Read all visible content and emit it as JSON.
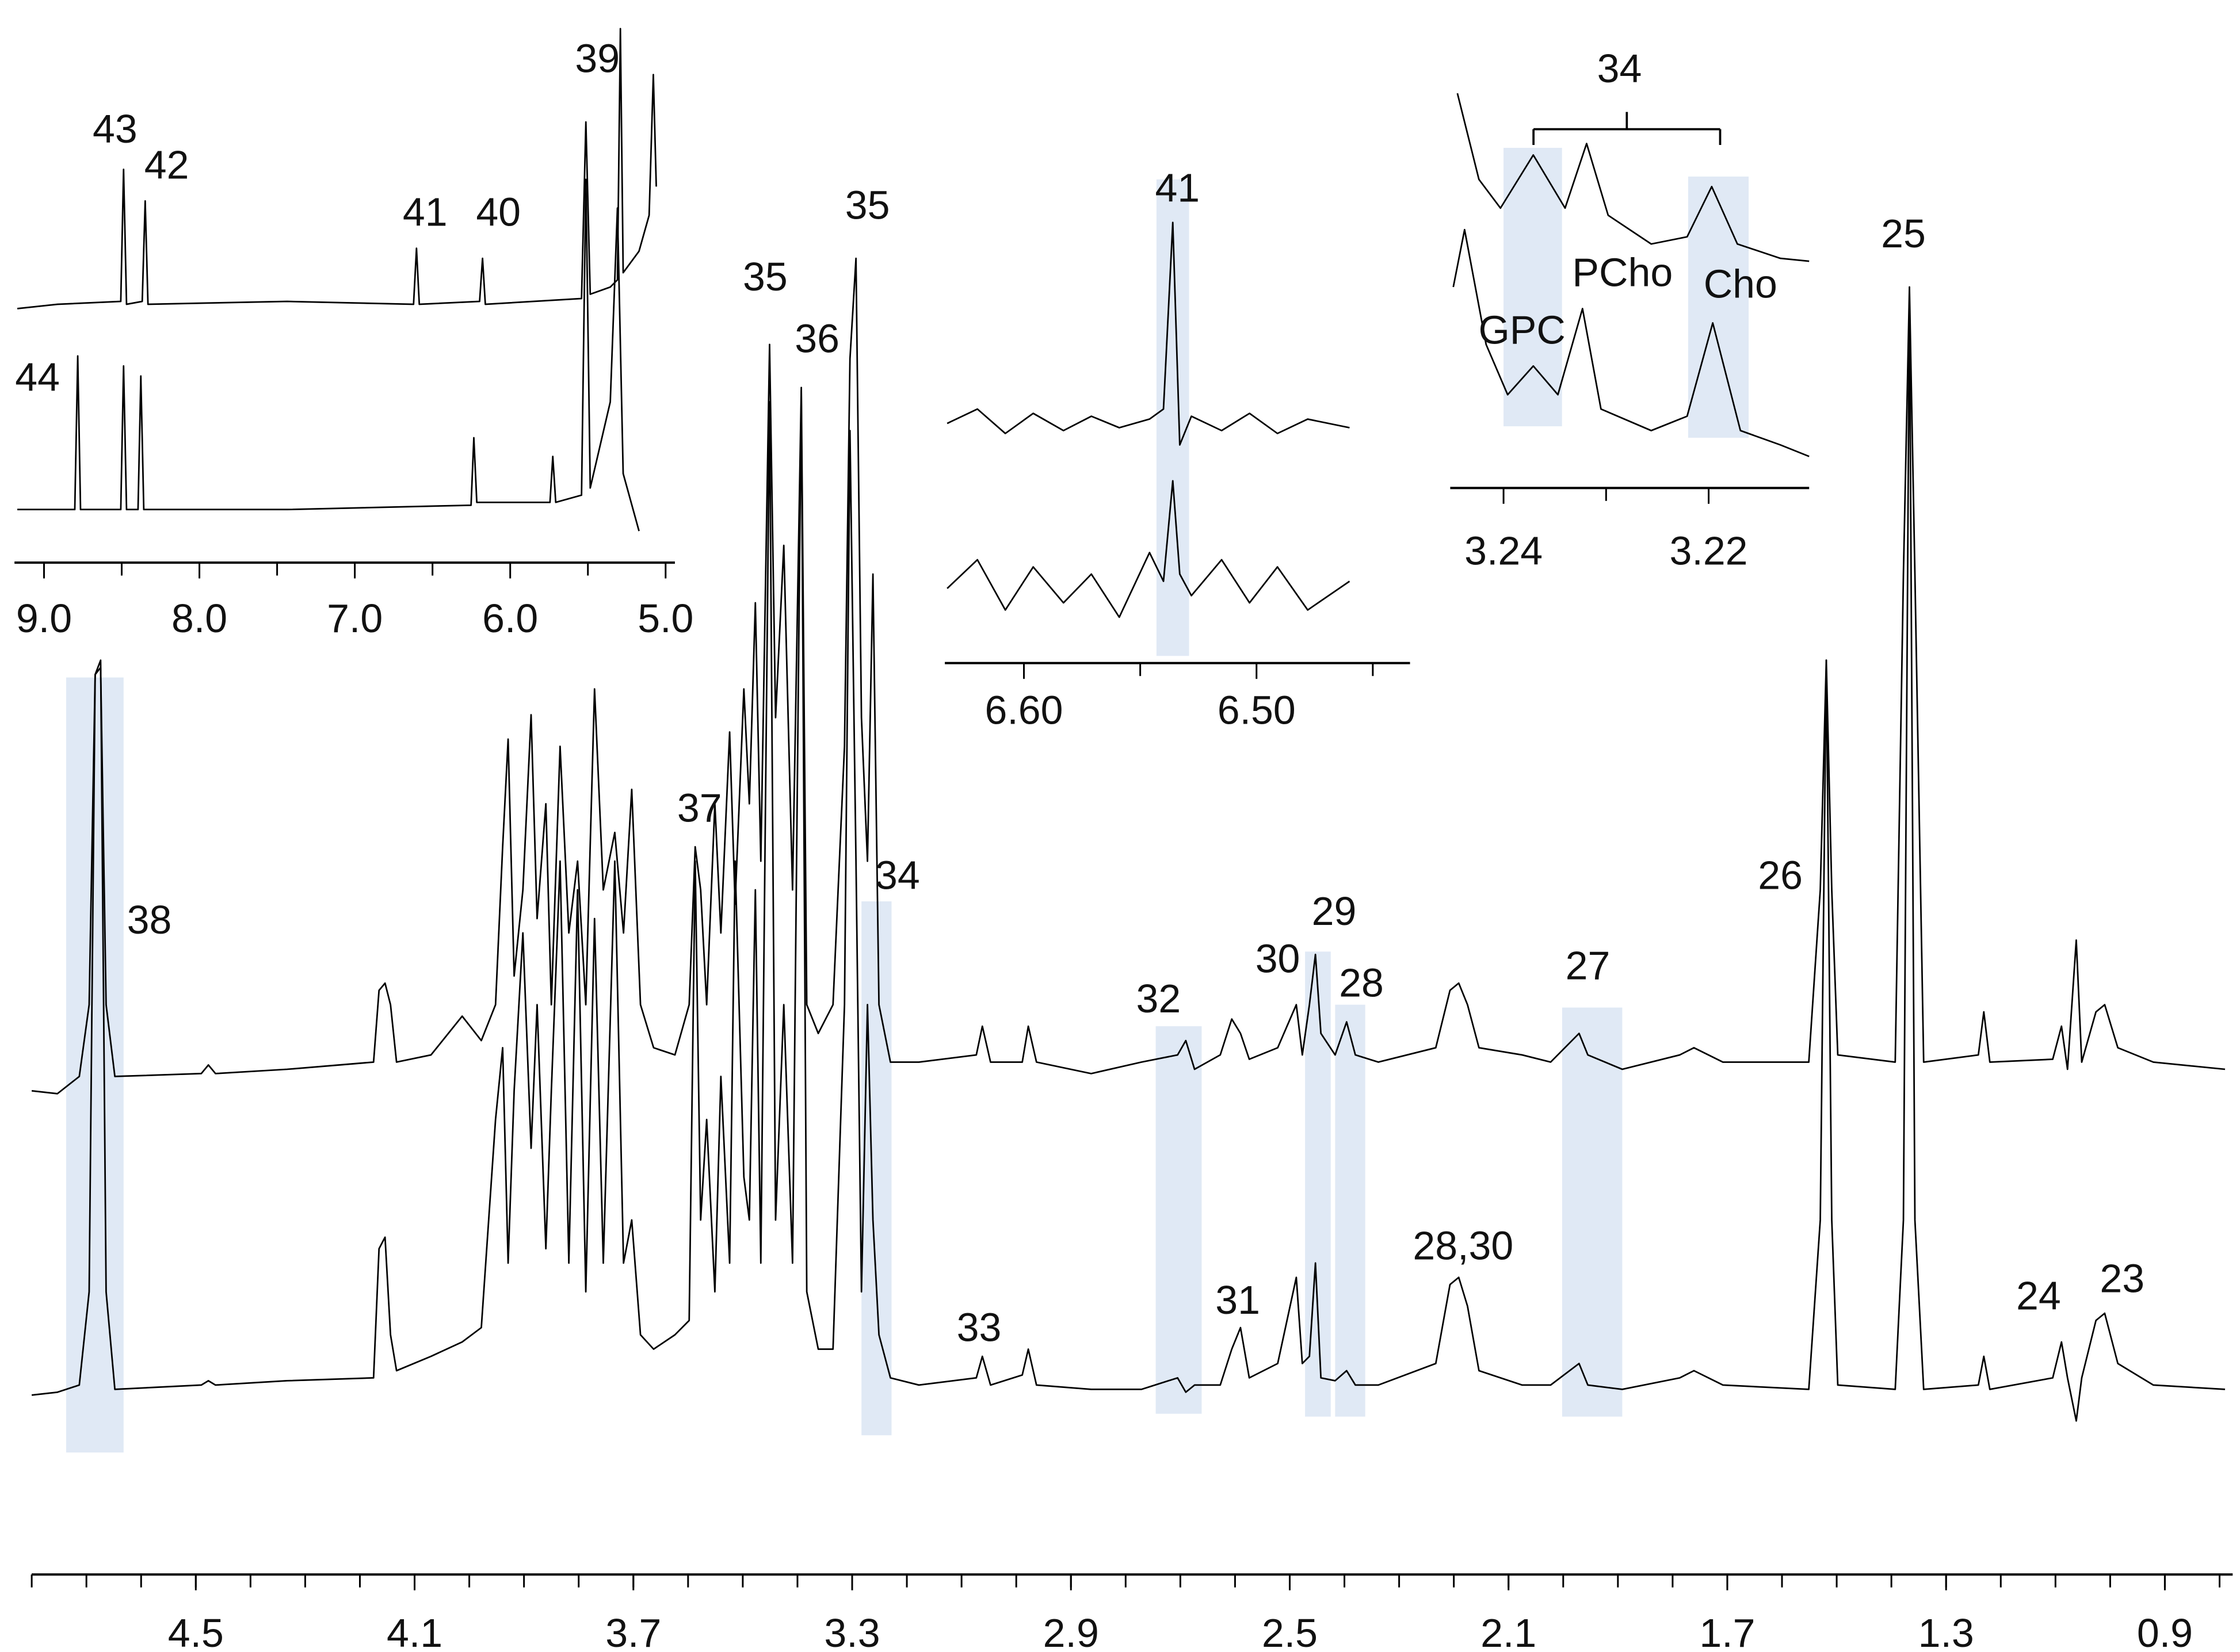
{
  "chart_data": [
    {
      "type": "line",
      "xlim": [
        4.8,
        0.776
      ],
      "ylim": [
        -20,
        820
      ],
      "xticks": [
        4.5,
        4.1,
        3.7,
        3.3,
        2.9,
        2.5,
        2.1,
        1.7,
        1.3,
        0.9
      ],
      "minor_xticks": [
        4.8,
        4.7,
        4.6,
        4.5,
        4.4,
        4.3,
        4.2,
        4.1,
        4.0,
        3.9,
        3.8,
        3.7,
        3.6,
        3.5,
        3.4,
        3.3,
        3.2,
        3.1,
        3.0,
        2.9,
        2.8,
        2.7,
        2.6,
        2.5,
        2.4,
        2.3,
        2.2,
        2.1,
        2.0,
        1.9,
        1.8,
        1.7,
        1.6,
        1.5,
        1.4,
        1.3,
        1.2,
        1.1,
        1.0,
        0.9,
        0.8
      ],
      "highlight_color": "#dbe5f3",
      "highlights": [
        {
          "x": [
            4.737,
            4.632
          ],
          "y": [
            -12,
            528
          ]
        },
        {
          "x": [
            3.283,
            3.228
          ],
          "y": [
            0,
            372
          ]
        },
        {
          "x": [
            2.745,
            2.661
          ],
          "y": [
            15,
            285
          ]
        },
        {
          "x": [
            2.472,
            2.425
          ],
          "y": [
            13,
            337
          ]
        },
        {
          "x": [
            2.417,
            2.362
          ],
          "y": [
            13,
            300
          ]
        },
        {
          "x": [
            2.002,
            1.892
          ],
          "y": [
            13,
            298
          ]
        }
      ],
      "x": [
        4.8,
        4.753,
        4.713,
        4.695,
        4.684,
        4.674,
        4.664,
        4.648,
        4.49,
        4.477,
        4.464,
        4.333,
        4.175,
        4.165,
        4.154,
        4.144,
        4.133,
        4.07,
        4.013,
        3.978,
        3.952,
        3.939,
        3.929,
        3.918,
        3.902,
        3.887,
        3.876,
        3.86,
        3.85,
        3.834,
        3.818,
        3.802,
        3.787,
        3.771,
        3.755,
        3.734,
        3.718,
        3.703,
        3.687,
        3.663,
        3.624,
        3.598,
        3.587,
        3.577,
        3.566,
        3.551,
        3.54,
        3.524,
        3.514,
        3.498,
        3.488,
        3.477,
        3.467,
        3.451,
        3.44,
        3.425,
        3.409,
        3.393,
        3.383,
        3.362,
        3.335,
        3.314,
        3.304,
        3.293,
        3.283,
        3.272,
        3.262,
        3.251,
        3.23,
        3.178,
        3.073,
        3.062,
        3.047,
        2.989,
        2.978,
        2.963,
        2.863,
        2.771,
        2.705,
        2.69,
        2.674,
        2.627,
        2.606,
        2.59,
        2.574,
        2.522,
        2.488,
        2.477,
        2.464,
        2.453,
        2.443,
        2.417,
        2.396,
        2.38,
        2.338,
        2.233,
        2.207,
        2.191,
        2.175,
        2.154,
        2.075,
        2.023,
        1.971,
        1.955,
        1.892,
        1.787,
        1.761,
        1.708,
        1.551,
        1.53,
        1.519,
        1.509,
        1.498,
        1.393,
        1.378,
        1.367,
        1.357,
        1.341,
        1.241,
        1.231,
        1.22,
        1.105,
        1.089,
        1.078,
        1.062,
        1.052,
        1.026,
        1.01,
        0.986,
        0.921,
        0.79
      ],
      "series": [
        {
          "color": "#000000",
          "values": [
            240,
            238,
            250,
            300,
            530,
            535,
            300,
            250,
            252,
            258,
            252,
            255,
            260,
            310,
            315,
            300,
            260,
            265,
            292,
            275,
            300,
            410,
            485,
            320,
            380,
            502,
            360,
            440,
            300,
            480,
            350,
            400,
            300,
            520,
            380,
            420,
            350,
            450,
            300,
            270,
            265,
            300,
            410,
            380,
            300,
            440,
            350,
            490,
            370,
            520,
            440,
            580,
            400,
            760,
            500,
            620,
            380,
            730,
            300,
            280,
            300,
            480,
            750,
            820,
            500,
            400,
            600,
            300,
            260,
            260,
            265,
            285,
            260,
            260,
            285,
            260,
            252,
            260,
            265,
            275,
            255,
            265,
            290,
            280,
            262,
            270,
            300,
            265,
            300,
            335,
            280,
            265,
            288,
            265,
            260,
            270,
            310,
            315,
            300,
            270,
            265,
            260,
            280,
            265,
            255,
            265,
            270,
            260,
            260,
            380,
            540,
            380,
            265,
            260,
            600,
            800,
            600,
            260,
            265,
            295,
            260,
            262,
            285,
            255,
            345,
            260,
            295,
            300,
            270,
            260,
            255
          ]
        },
        {
          "color": "#000000",
          "values": [
            28,
            30,
            35,
            100,
            530,
            540,
            100,
            32,
            35,
            38,
            35,
            38,
            40,
            130,
            138,
            70,
            45,
            55,
            65,
            75,
            220,
            270,
            120,
            240,
            350,
            200,
            300,
            130,
            240,
            400,
            120,
            380,
            100,
            360,
            120,
            400,
            120,
            150,
            70,
            60,
            70,
            80,
            400,
            150,
            220,
            100,
            250,
            120,
            400,
            180,
            150,
            380,
            120,
            720,
            150,
            300,
            120,
            728,
            100,
            60,
            60,
            300,
            700,
            400,
            100,
            300,
            150,
            70,
            40,
            35,
            40,
            55,
            35,
            42,
            60,
            35,
            32,
            32,
            40,
            30,
            35,
            35,
            60,
            75,
            40,
            50,
            110,
            50,
            55,
            120,
            40,
            38,
            45,
            35,
            35,
            50,
            105,
            110,
            90,
            45,
            35,
            35,
            50,
            35,
            32,
            40,
            45,
            35,
            32,
            150,
            540,
            150,
            35,
            32,
            150,
            795,
            150,
            32,
            35,
            55,
            32,
            40,
            65,
            40,
            10,
            40,
            80,
            85,
            50,
            35,
            32
          ]
        }
      ],
      "annotations": [
        {
          "text": "38",
          "x": 4.585,
          "y": 357
        },
        {
          "text": "37",
          "x": 3.579,
          "y": 435
        },
        {
          "text": "35",
          "x": 3.459,
          "y": 805
        },
        {
          "text": "36",
          "x": 3.364,
          "y": 762
        },
        {
          "text": "35",
          "x": 3.272,
          "y": 855
        },
        {
          "text": "34",
          "x": 3.217,
          "y": 388
        },
        {
          "text": "33",
          "x": 3.068,
          "y": 73
        },
        {
          "text": "32",
          "x": 2.74,
          "y": 302
        },
        {
          "text": "31",
          "x": 2.595,
          "y": 92
        },
        {
          "text": "30",
          "x": 2.522,
          "y": 330
        },
        {
          "text": "29",
          "x": 2.419,
          "y": 363
        },
        {
          "text": "28",
          "x": 2.369,
          "y": 313
        },
        {
          "text": "28,30",
          "x": 2.183,
          "y": 130
        },
        {
          "text": "27",
          "x": 1.955,
          "y": 325
        },
        {
          "text": "26",
          "x": 1.603,
          "y": 388
        },
        {
          "text": "25",
          "x": 1.378,
          "y": 835
        },
        {
          "text": "24",
          "x": 1.131,
          "y": 95
        },
        {
          "text": "23",
          "x": 0.978,
          "y": 107
        }
      ]
    },
    {
      "type": "line",
      "xlim": [
        9.19,
        4.94
      ],
      "ylim": [
        0,
        370
      ],
      "xticks": [
        {
          "value": 9,
          "label": "9.0"
        },
        {
          "value": 8,
          "label": "8.0"
        },
        {
          "value": 7,
          "label": "7.0"
        },
        {
          "value": 6,
          "label": "6.0"
        },
        {
          "value": 5,
          "label": "5.0"
        }
      ],
      "minor_xticks": [
        8.5,
        7.5,
        6.5,
        5.5
      ],
      "series": [
        {
          "color": "#000000",
          "x": [
            9.172,
            8.913,
            8.506,
            8.488,
            8.469,
            8.368,
            8.349,
            8.331,
            7.435,
            6.622,
            6.603,
            6.585,
            6.197,
            6.178,
            6.16,
            5.541,
            5.513,
            5.485,
            5.356,
            5.31,
            5.291,
            5.273,
            5.171,
            5.106,
            5.079,
            5.06
          ],
          "values": [
            175,
            178,
            180,
            272,
            178,
            180,
            250,
            178,
            180,
            178,
            217,
            178,
            180,
            210,
            178,
            182,
            305,
            185,
            190,
            195,
            370,
            200,
            215,
            240,
            338,
            260
          ]
        },
        {
          "color": "#000000",
          "x": [
            9.172,
            8.802,
            8.783,
            8.765,
            8.506,
            8.488,
            8.469,
            8.395,
            8.377,
            8.358,
            7.435,
            6.252,
            6.234,
            6.215,
            5.744,
            5.726,
            5.707,
            5.541,
            5.513,
            5.485,
            5.356,
            5.31,
            5.273,
            5.171
          ],
          "values": [
            35,
            35,
            142,
            35,
            35,
            135,
            35,
            35,
            128,
            35,
            35,
            38,
            85,
            40,
            40,
            72,
            40,
            45,
            265,
            50,
            110,
            245,
            60,
            20
          ]
        }
      ],
      "annotations": [
        {
          "text": "43",
          "x": 8.543,
          "y": 298
        },
        {
          "text": "42",
          "x": 8.211,
          "y": 273
        },
        {
          "text": "41",
          "x": 6.548,
          "y": 240
        },
        {
          "text": "40",
          "x": 6.076,
          "y": 240
        },
        {
          "text": "39",
          "x": 5.439,
          "y": 347
        },
        {
          "text": "44",
          "x": 9.042,
          "y": 125
        }
      ]
    },
    {
      "type": "line",
      "xlim": [
        6.634,
        6.434
      ],
      "ylim": [
        0,
        340
      ],
      "xticks": [
        {
          "value": 6.6,
          "label": "6.60"
        },
        {
          "value": 6.5,
          "label": "6.50"
        }
      ],
      "minor_xticks": [
        6.55,
        6.45
      ],
      "highlight_color": "#dbe5f3",
      "highlights": [
        {
          "x": [
            6.543,
            6.529
          ],
          "y": [
            3,
            335
          ]
        }
      ],
      "x": [
        6.633,
        6.62,
        6.608,
        6.596,
        6.583,
        6.571,
        6.559,
        6.546,
        6.54,
        6.536,
        6.533,
        6.528,
        6.515,
        6.503,
        6.491,
        6.478,
        6.46
      ],
      "series": [
        {
          "color": "#000000",
          "values": [
            165,
            175,
            158,
            172,
            160,
            170,
            162,
            168,
            175,
            305,
            150,
            170,
            160,
            172,
            158,
            168,
            162
          ]
        },
        {
          "color": "#000000",
          "values": [
            50,
            70,
            35,
            65,
            40,
            60,
            30,
            75,
            55,
            125,
            60,
            45,
            70,
            40,
            65,
            35,
            55
          ]
        }
      ],
      "annotations": [
        {
          "text": "41",
          "x": 6.534,
          "y": 327
        }
      ]
    },
    {
      "type": "line",
      "xlim": [
        3.2452,
        3.2102
      ],
      "ylim": [
        0,
        300
      ],
      "xticks": [
        3.24,
        3.22
      ],
      "minor_xticks": [
        3.23
      ],
      "highlight_color": "#dbe5f3",
      "highlights": [
        {
          "x": [
            3.24,
            3.2343
          ],
          "y": [
            43,
            237
          ]
        },
        {
          "x": [
            3.222,
            3.2161
          ],
          "y": [
            35,
            217
          ]
        }
      ],
      "series": [
        {
          "color": "#000000",
          "x": [
            3.2445,
            3.2424,
            3.2403,
            3.2371,
            3.234,
            3.2319,
            3.2298,
            3.2256,
            3.2221,
            3.2197,
            3.2172,
            3.213,
            3.2102
          ],
          "values": [
            275,
            215,
            195,
            232,
            195,
            240,
            190,
            170,
            175,
            210,
            170,
            160,
            158
          ]
        },
        {
          "color": "#000000",
          "x": [
            3.2449,
            3.2438,
            3.2417,
            3.2396,
            3.2371,
            3.2347,
            3.2323,
            3.2305,
            3.2256,
            3.2221,
            3.2196,
            3.2169,
            3.213,
            3.2102
          ],
          "values": [
            140,
            180,
            100,
            65,
            85,
            65,
            125,
            55,
            40,
            50,
            115,
            40,
            30,
            22
          ]
        }
      ],
      "annotations": [
        {
          "text": "34",
          "x": 3.2287,
          "y": 290
        },
        {
          "text": "GPC",
          "x": 3.2382,
          "y": 108
        },
        {
          "text": "PCho",
          "x": 3.2284,
          "y": 148
        },
        {
          "text": "Cho",
          "x": 3.2169,
          "y": 140
        }
      ]
    }
  ]
}
